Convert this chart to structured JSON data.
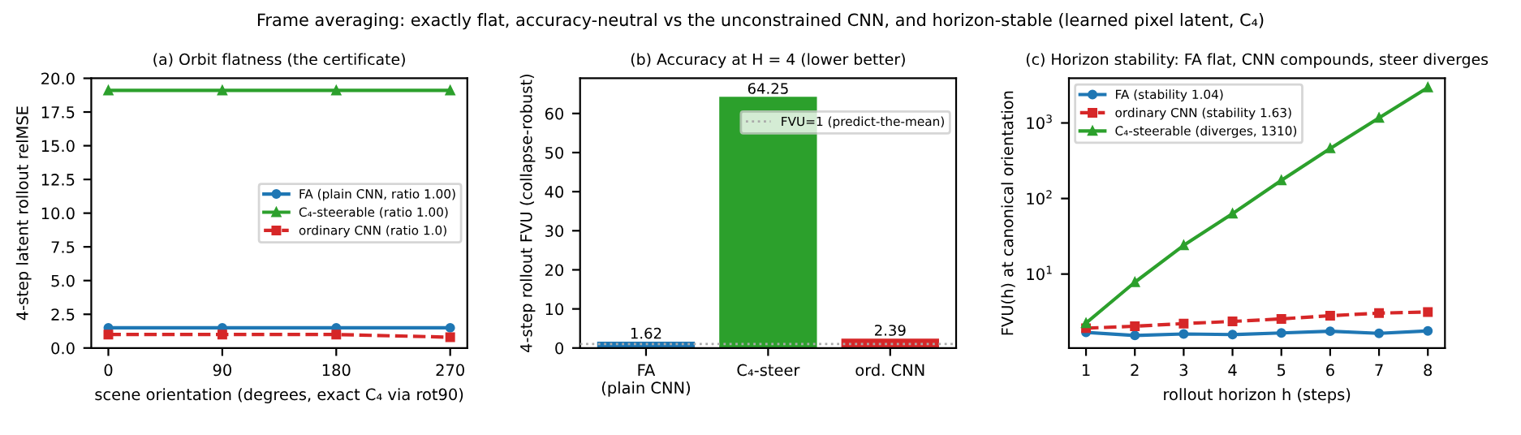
{
  "chart_data": [
    {
      "type": "line",
      "title": "(a) Orbit flatness (the certificate)",
      "subtitle": "Frame averaging: exactly flat, accuracy-neutral vs the unconstrained CNN, and horizon-stable (learned pixel latent, C₄)",
      "xlabel": "scene orientation (degrees, exact C₄ via rot90)",
      "ylabel": "4-step latent rollout relMSE",
      "x": [
        0,
        90,
        180,
        270
      ],
      "xlim": [
        -13.5,
        283.5
      ],
      "xticks": [
        0,
        90,
        180,
        270
      ],
      "ylim": [
        0,
        20
      ],
      "yticks": [
        {
          "value": 0,
          "label": "0.0"
        },
        {
          "value": 2.5,
          "label": "2.5"
        },
        {
          "value": 5,
          "label": "5.0"
        },
        {
          "value": 7.5,
          "label": "7.5"
        },
        {
          "value": 10,
          "label": "10.0"
        },
        {
          "value": 12.5,
          "label": "12.5"
        },
        {
          "value": 15,
          "label": "15.0"
        },
        {
          "value": 17.5,
          "label": "17.5"
        },
        {
          "value": 20,
          "label": "20.0"
        }
      ],
      "legend": "center right",
      "series": [
        {
          "name": "FA (plain CNN, ratio 1.00)",
          "color": "#1f77b4",
          "values": [
            1.5,
            1.5,
            1.5,
            1.5
          ],
          "marker": "circle",
          "line_style": "solid"
        },
        {
          "name": "C₄-steerable (ratio 1.00)",
          "color": "#2ca02c",
          "values": [
            19.1,
            19.1,
            19.1,
            19.1
          ],
          "marker": "triangle",
          "line_style": "solid"
        },
        {
          "name": "ordinary CNN (ratio 1.0)",
          "color": "#d62728",
          "values": [
            1.0,
            1.0,
            1.0,
            0.8
          ],
          "marker": "square",
          "line_style": "dashed"
        }
      ]
    },
    {
      "type": "bar",
      "title": "(b) Accuracy at H = 4 (lower better)",
      "ylabel": "4-step rollout FVU (collapse-robust)",
      "categories": [
        "FA\n(plain CNN)",
        "C₄-steer",
        "ord. CNN"
      ],
      "values": [
        1.62,
        64.25,
        2.39
      ],
      "colors": [
        "#1f77b4",
        "#2ca02c",
        "#d62728"
      ],
      "data_labels": true,
      "ylim": [
        0,
        69
      ],
      "yticks": [
        0,
        10,
        20,
        30,
        40,
        50,
        60
      ],
      "legend": "top right",
      "ref_lines": [
        {
          "axis": "y",
          "value": 1,
          "label": "FVU=1 (predict-the-mean)",
          "color": "#aaaaaa",
          "line_style": "dotted"
        }
      ]
    },
    {
      "type": "line",
      "title": "(c) Horizon stability: FA flat, CNN compounds, steer diverges",
      "xlabel": "rollout horizon h (steps)",
      "ylabel": "FVU(h) at canonical orientation",
      "log": "y",
      "x": [
        1,
        2,
        3,
        4,
        5,
        6,
        7,
        8
      ],
      "xlim": [
        0.65,
        8.35
      ],
      "xticks": [
        1,
        2,
        3,
        4,
        5,
        6,
        7,
        8
      ],
      "ylim": [
        1.05,
        3900
      ],
      "yticks": [
        {
          "value": 10,
          "label": "10$^{1}$"
        },
        {
          "value": 100,
          "label": "10$^{2}$"
        },
        {
          "value": 1000,
          "label": "10$^{3}$"
        }
      ],
      "legend": "top left",
      "series": [
        {
          "name": "FA (stability 1.04)",
          "color": "#1f77b4",
          "values": [
            1.69,
            1.54,
            1.61,
            1.58,
            1.66,
            1.75,
            1.64,
            1.77
          ],
          "marker": "circle",
          "line_style": "solid"
        },
        {
          "name": "ordinary CNN (stability 1.63)",
          "color": "#d62728",
          "values": [
            1.92,
            2.04,
            2.21,
            2.36,
            2.55,
            2.81,
            3.04,
            3.14
          ],
          "marker": "square",
          "line_style": "dashed"
        },
        {
          "name": "C₄-steerable (diverges, 1310)",
          "color": "#2ca02c",
          "values": [
            2.24,
            7.8,
            24,
            63,
            174,
            460,
            1170,
            2950
          ],
          "marker": "triangle",
          "line_style": "solid"
        }
      ]
    }
  ]
}
